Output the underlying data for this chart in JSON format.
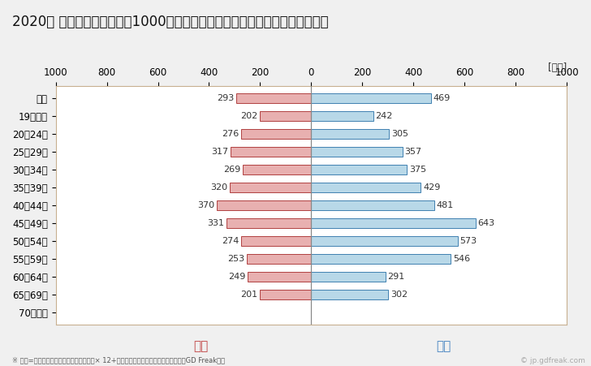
{
  "title": "2020年 民間企業（従業者数1000人以上）フルタイム労働者の男女別平均年収",
  "ylabel_unit": "[万円]",
  "categories": [
    "全体",
    "19歳以下",
    "20〜24歳",
    "25〜29歳",
    "30〜34歳",
    "35〜39歳",
    "40〜44歳",
    "45〜49歳",
    "50〜54歳",
    "55〜59歳",
    "60〜64歳",
    "65〜69歳",
    "70歳以上"
  ],
  "female_values": [
    293,
    202,
    276,
    317,
    269,
    320,
    370,
    331,
    274,
    253,
    249,
    201,
    0
  ],
  "male_values": [
    469,
    242,
    305,
    357,
    375,
    429,
    481,
    643,
    573,
    546,
    291,
    302,
    0
  ],
  "female_color": "#e8b0b0",
  "female_border_color": "#b04040",
  "male_color": "#b8d8e8",
  "male_border_color": "#4080b0",
  "xlim": [
    -1000,
    1000
  ],
  "xticks": [
    -1000,
    -800,
    -600,
    -400,
    -200,
    0,
    200,
    400,
    600,
    800,
    1000
  ],
  "xticklabels": [
    "1000",
    "800",
    "600",
    "400",
    "200",
    "0",
    "200",
    "400",
    "600",
    "800",
    "1000"
  ],
  "female_label": "女性",
  "male_label": "男性",
  "footnote": "※ 年収=「きまって支給する現金給与額」× 12+「年間賞与その他特別給与額」としてGD Freak推計",
  "watermark": "© jp.gdfreak.com",
  "outer_bg": "#f0f0f0",
  "plot_bg": "#ffffff",
  "border_color": "#c8b090",
  "title_fontsize": 12,
  "tick_fontsize": 8.5,
  "bar_height": 0.55,
  "value_fontsize": 8,
  "female_label_color": "#c04040",
  "male_label_color": "#4080c0",
  "zero_line_color": "#888888"
}
